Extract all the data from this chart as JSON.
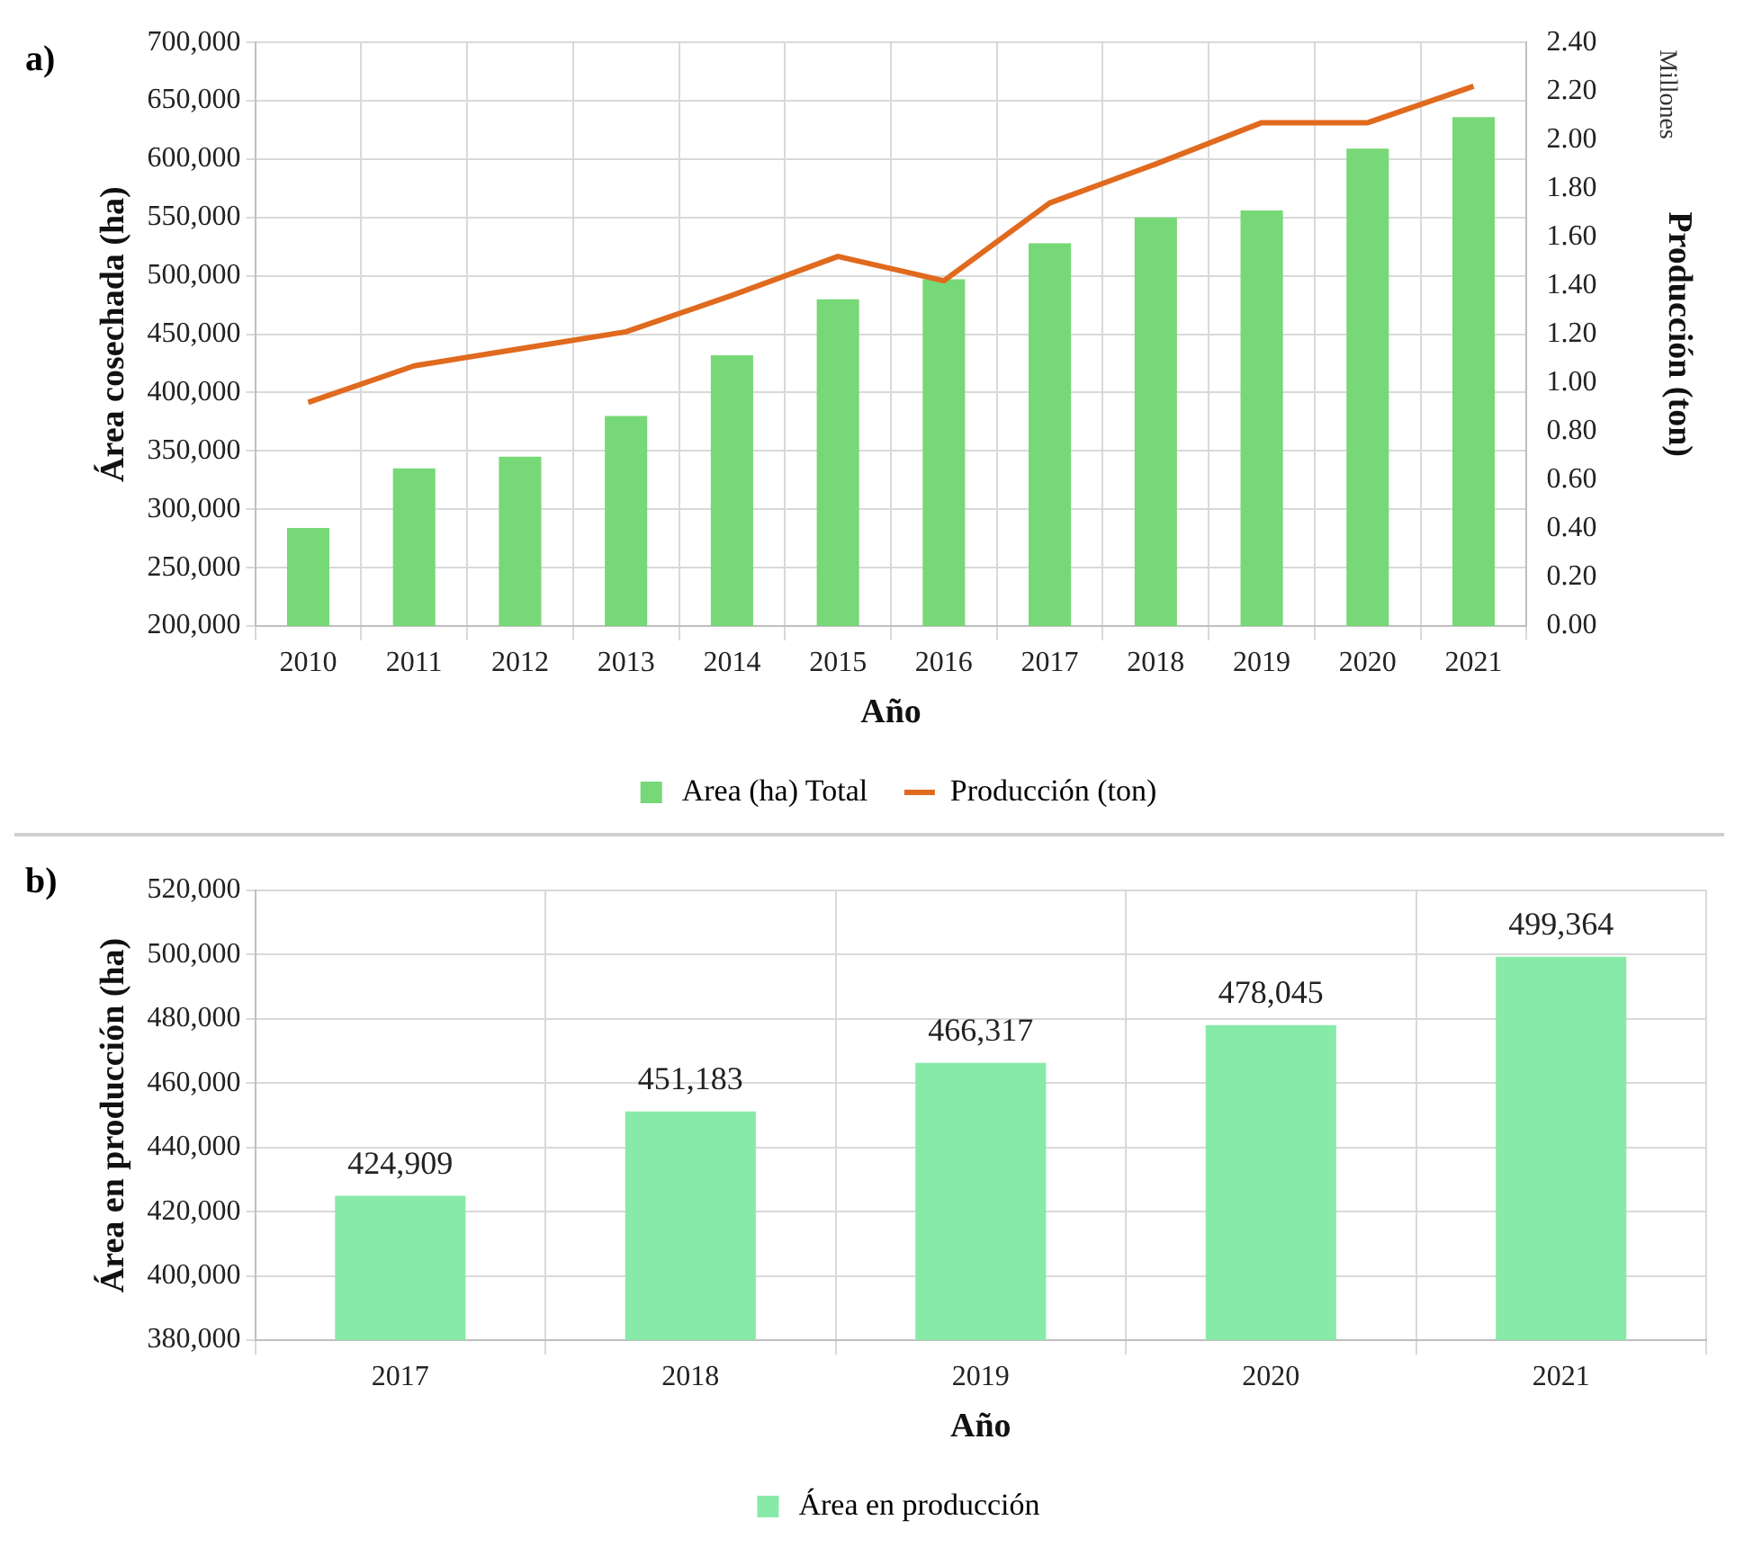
{
  "chart_data": [
    {
      "type": "bar",
      "annotations": [
        "a)",
        "Millones"
      ],
      "xlabel": "Año",
      "ylabel": "Área cosechada (ha)",
      "y2label": "Producción (ton)",
      "categories": [
        "2010",
        "2011",
        "2012",
        "2013",
        "2014",
        "2015",
        "2016",
        "2017",
        "2018",
        "2019",
        "2020",
        "2021"
      ],
      "series": [
        {
          "name": "Area (ha) Total",
          "color": "#77d877",
          "values": [
            284000,
            335000,
            345000,
            380000,
            432000,
            480000,
            497000,
            528000,
            550000,
            556000,
            609000,
            636000
          ]
        },
        {
          "name": "Producción (ton)",
          "type": "line",
          "axis": "y2",
          "color": "#e06a1e",
          "values": [
            0.92,
            1.07,
            1.14,
            1.21,
            1.36,
            1.52,
            1.42,
            1.74,
            1.9,
            2.07,
            2.07,
            2.22
          ]
        }
      ],
      "ylim": [
        200000,
        700000
      ],
      "yticks": [
        {
          "value": 200000,
          "label": "200,000"
        },
        {
          "value": 250000,
          "label": "250,000"
        },
        {
          "value": 300000,
          "label": "300,000"
        },
        {
          "value": 350000,
          "label": "350,000"
        },
        {
          "value": 400000,
          "label": "400,000"
        },
        {
          "value": 450000,
          "label": "450,000"
        },
        {
          "value": 500000,
          "label": "500,000"
        },
        {
          "value": 550000,
          "label": "550,000"
        },
        {
          "value": 600000,
          "label": "600,000"
        },
        {
          "value": 650000,
          "label": "650,000"
        },
        {
          "value": 700000,
          "label": "700,000"
        }
      ],
      "y2lim": [
        0,
        2.4
      ],
      "y2ticks": [
        {
          "value": 0,
          "label": "0.00"
        },
        {
          "value": 0.2,
          "label": "0.20"
        },
        {
          "value": 0.4,
          "label": "0.40"
        },
        {
          "value": 0.6,
          "label": "0.60"
        },
        {
          "value": 0.8,
          "label": "0.80"
        },
        {
          "value": 1,
          "label": "1.00"
        },
        {
          "value": 1.2,
          "label": "1.20"
        },
        {
          "value": 1.4,
          "label": "1.40"
        },
        {
          "value": 1.6,
          "label": "1.60"
        },
        {
          "value": 1.8,
          "label": "1.80"
        },
        {
          "value": 2,
          "label": "2.00"
        },
        {
          "value": 2.2,
          "label": "2.20"
        },
        {
          "value": 2.4,
          "label": "2.40"
        }
      ],
      "grid": true,
      "legend": "bottom",
      "marker": "none"
    },
    {
      "type": "bar",
      "annotations": [
        "b)"
      ],
      "xlabel": "Año",
      "ylabel": "Área en producción (ha)",
      "categories": [
        "2017",
        "2018",
        "2019",
        "2020",
        "2021"
      ],
      "series": [
        {
          "name": "Área en producción",
          "color": "#88eaa8",
          "values": [
            424909,
            451183,
            466317,
            478045,
            499364
          ]
        }
      ],
      "value_labels": [
        "424,909",
        "451,183",
        "466,317",
        "478,045",
        "499,364"
      ],
      "ylim": [
        380000,
        520000
      ],
      "yticks": [
        {
          "value": 380000,
          "label": "380,000"
        },
        {
          "value": 400000,
          "label": "400,000"
        },
        {
          "value": 420000,
          "label": "420,000"
        },
        {
          "value": 440000,
          "label": "440,000"
        },
        {
          "value": 460000,
          "label": "460,000"
        },
        {
          "value": 480000,
          "label": "480,000"
        },
        {
          "value": 500000,
          "label": "500,000"
        },
        {
          "value": 520000,
          "label": "520,000"
        }
      ],
      "grid": true,
      "legend": "bottom"
    }
  ]
}
